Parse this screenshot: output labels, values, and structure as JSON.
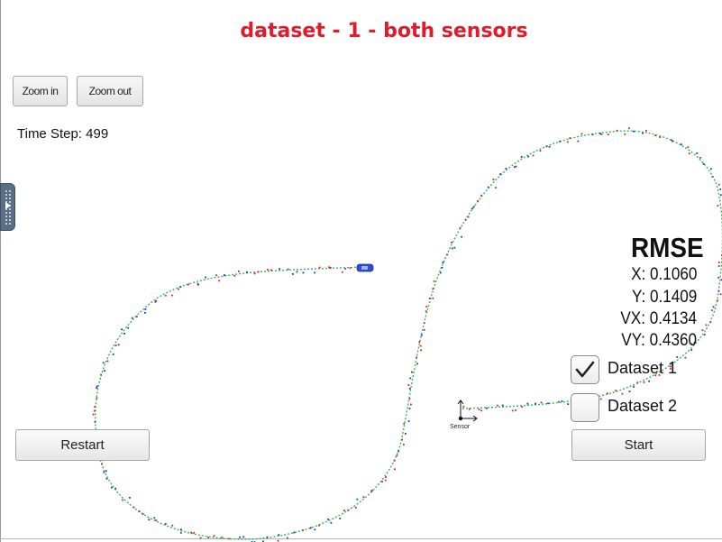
{
  "title": "dataset - 1 - both sensors",
  "toolbar": {
    "zoom_in_label": "Zoom in",
    "zoom_out_label": "Zoom out"
  },
  "time_step": "Time Step: 499",
  "rmse": {
    "heading": "RMSE",
    "x": "X: 0.1060",
    "y": "Y: 0.1409",
    "vx": "VX: 0.4134",
    "vy": "VY: 0.4360"
  },
  "datasets": [
    {
      "label": "Dataset 1",
      "checked": true
    },
    {
      "label": "Dataset 2",
      "checked": false
    }
  ],
  "buttons": {
    "restart_label": "Restart",
    "start_label": "Start"
  },
  "sensor_label": "Sensor",
  "colors": {
    "title": "#e21b2a",
    "track": "#2fb84f",
    "lidar": "#d6203b",
    "radar": "#2433c9",
    "car": "#2d4bd8",
    "side_handle": "#5a6f86"
  }
}
